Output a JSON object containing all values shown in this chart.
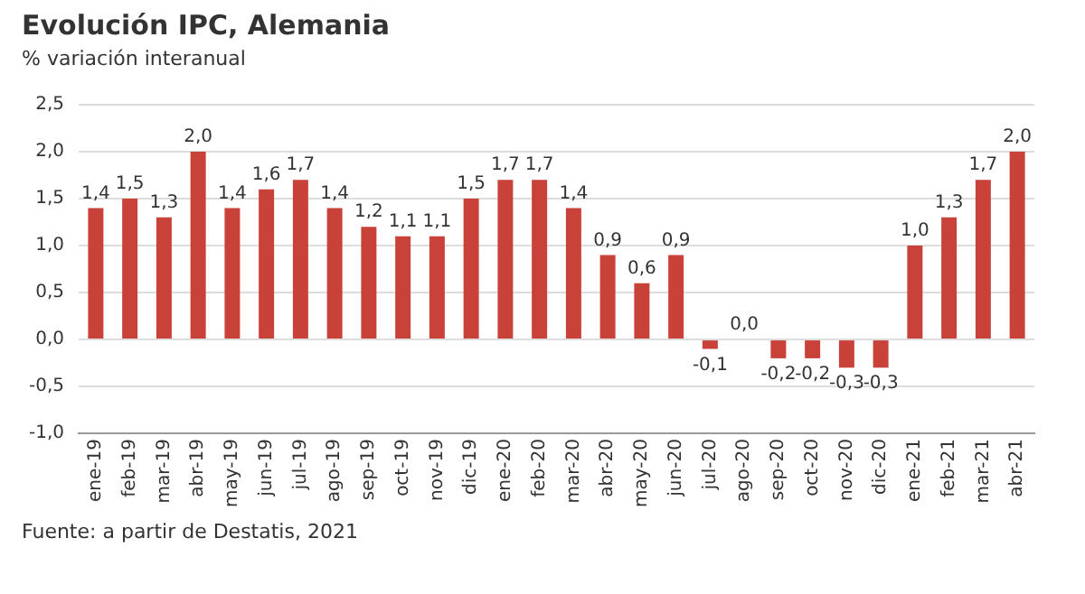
{
  "chart_data": {
    "type": "bar",
    "title": "Evolución IPC, Alemania",
    "subtitle": "% variación interanual",
    "categories": [
      "ene-19",
      "feb-19",
      "mar-19",
      "abr-19",
      "may-19",
      "jun-19",
      "jul-19",
      "ago-19",
      "sep-19",
      "oct-19",
      "nov-19",
      "dic-19",
      "ene-20",
      "feb-20",
      "mar-20",
      "abr-20",
      "may-20",
      "jun-20",
      "jul-20",
      "ago-20",
      "sep-20",
      "oct-20",
      "nov-20",
      "dic-20",
      "ene-21",
      "feb-21",
      "mar-21",
      "abr-21"
    ],
    "values": [
      1.4,
      1.5,
      1.3,
      2.0,
      1.4,
      1.6,
      1.7,
      1.4,
      1.2,
      1.1,
      1.1,
      1.5,
      1.7,
      1.7,
      1.4,
      0.9,
      0.6,
      0.9,
      -0.1,
      0.0,
      -0.2,
      -0.2,
      -0.3,
      -0.3,
      1.0,
      1.3,
      1.7,
      2.0
    ],
    "value_labels": [
      "1,4",
      "1,5",
      "1,3",
      "2,0",
      "1,4",
      "1,6",
      "1,7",
      "1,4",
      "1,2",
      "1,1",
      "1,1",
      "1,5",
      "1,7",
      "1,7",
      "1,4",
      "0,9",
      "0,6",
      "0,9",
      "-0,1",
      "0,0",
      "-0,2",
      "-0,2",
      "-0,3",
      "-0,3",
      "1,0",
      "1,3",
      "1,7",
      "2,0"
    ],
    "color": "#c8423a",
    "ylim": [
      -1.0,
      2.5
    ],
    "yticks": [
      {
        "value": -1.0,
        "label": "-1,0"
      },
      {
        "value": -0.5,
        "label": "-0,5"
      },
      {
        "value": 0,
        "label": "0,0"
      },
      {
        "value": 0.5,
        "label": "0,5"
      },
      {
        "value": 1.0,
        "label": "1,0"
      },
      {
        "value": 1.5,
        "label": "1,5"
      },
      {
        "value": 2.0,
        "label": "2,0"
      },
      {
        "value": 2.5,
        "label": "2,5"
      }
    ],
    "grid": "y",
    "legend": false,
    "annotations": [
      "Fuente: a partir de Destatis, 2021"
    ]
  }
}
